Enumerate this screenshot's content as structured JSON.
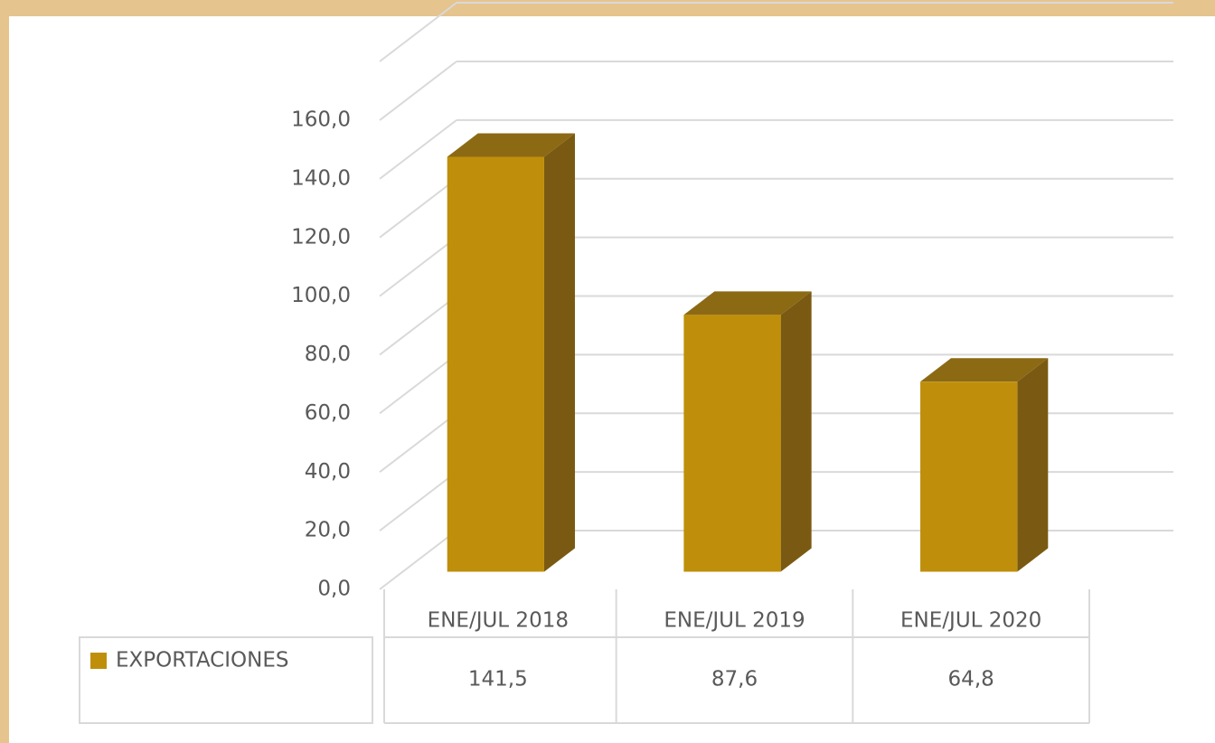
{
  "chart_data": {
    "type": "bar",
    "categories": [
      "ENE/JUL 2018",
      "ENE/JUL 2019",
      "ENE/JUL 2020"
    ],
    "series": [
      {
        "name": "EXPORTACIONES",
        "color": "#bf8f0b",
        "values": [
          141.5,
          87.6,
          64.8
        ],
        "value_labels": [
          "141,5",
          "87,6",
          "64,8"
        ]
      }
    ],
    "ylim": [
      0,
      160
    ],
    "yticks": [
      {
        "value": 0,
        "label": "0,0"
      },
      {
        "value": 20,
        "label": "20,0"
      },
      {
        "value": 40,
        "label": "40,0"
      },
      {
        "value": 60,
        "label": "60,0"
      },
      {
        "value": 80,
        "label": "80,0"
      },
      {
        "value": 100,
        "label": "100,0"
      },
      {
        "value": 120,
        "label": "120,0"
      },
      {
        "value": 140,
        "label": "140,0"
      },
      {
        "value": 160,
        "label": "160,0"
      }
    ],
    "grid": true
  }
}
